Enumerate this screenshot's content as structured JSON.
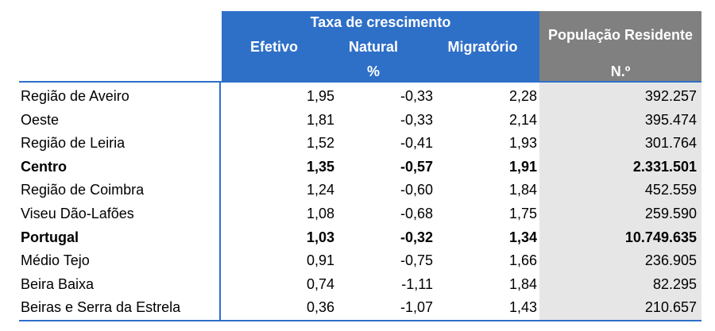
{
  "header": {
    "group_title": "Taxa de crescimento",
    "col_efetivo": "Efetivo",
    "col_natural": "Natural",
    "col_migratorio": "Migratório",
    "unit_percent": "%",
    "col_populacao": "População Residente",
    "unit_numero": "N.º"
  },
  "rows": [
    {
      "name": "Região de Aveiro",
      "efetivo": "1,95",
      "natural": "-0,33",
      "migratorio": "2,28",
      "populacao": "392.257",
      "bold": false
    },
    {
      "name": "Oeste",
      "efetivo": "1,81",
      "natural": "-0,33",
      "migratorio": "2,14",
      "populacao": "395.474",
      "bold": false
    },
    {
      "name": "Região de Leiria",
      "efetivo": "1,52",
      "natural": "-0,41",
      "migratorio": "1,93",
      "populacao": "301.764",
      "bold": false
    },
    {
      "name": "Centro",
      "efetivo": "1,35",
      "natural": "-0,57",
      "migratorio": "1,91",
      "populacao": "2.331.501",
      "bold": true
    },
    {
      "name": "Região de Coimbra",
      "efetivo": "1,24",
      "natural": "-0,60",
      "migratorio": "1,84",
      "populacao": "452.559",
      "bold": false
    },
    {
      "name": "Viseu Dão-Lafões",
      "efetivo": "1,08",
      "natural": "-0,68",
      "migratorio": "1,75",
      "populacao": "259.590",
      "bold": false
    },
    {
      "name": "Portugal",
      "efetivo": "1,03",
      "natural": "-0,32",
      "migratorio": "1,34",
      "populacao": "10.749.635",
      "bold": true
    },
    {
      "name": "Médio Tejo",
      "efetivo": "0,91",
      "natural": "-0,75",
      "migratorio": "1,66",
      "populacao": "236.905",
      "bold": false
    },
    {
      "name": "Beira Baixa",
      "efetivo": "0,74",
      "natural": "-1,11",
      "migratorio": "1,84",
      "populacao": "82.295",
      "bold": false
    },
    {
      "name": "Beiras e Serra da Estrela",
      "efetivo": "0,36",
      "natural": "-1,07",
      "migratorio": "1,43",
      "populacao": "210.657",
      "bold": false
    }
  ]
}
